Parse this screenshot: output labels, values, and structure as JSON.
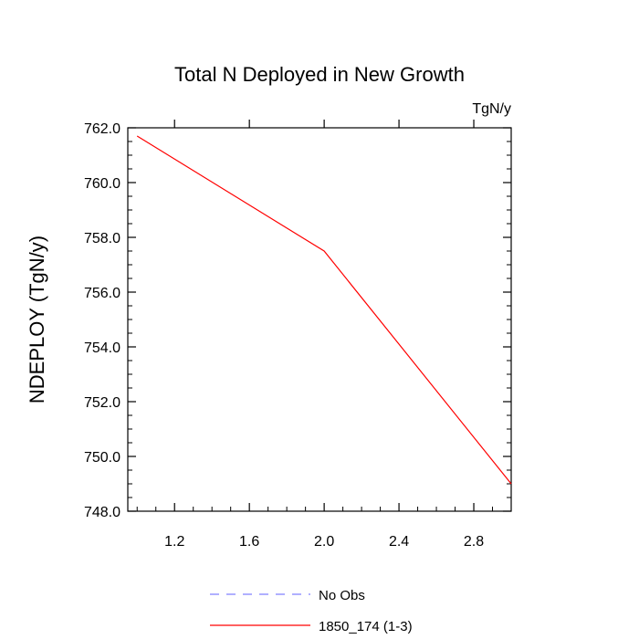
{
  "chart_data": {
    "type": "line",
    "title": "Total N Deployed in New Growth",
    "units_label": "TgN/y",
    "xlabel": "",
    "ylabel": "NDEPLOY  (TgN/y)",
    "xlim": [
      0.95,
      3.0
    ],
    "ylim": [
      748.0,
      762.0
    ],
    "x_ticks": [
      1.2,
      1.6,
      2.0,
      2.4,
      2.8
    ],
    "x_tick_labels": [
      "1.2",
      "1.6",
      "2.0",
      "2.4",
      "2.8"
    ],
    "y_ticks": [
      748.0,
      750.0,
      752.0,
      754.0,
      756.0,
      758.0,
      760.0,
      762.0
    ],
    "y_tick_labels": [
      "748.0",
      "750.0",
      "752.0",
      "754.0",
      "756.0",
      "758.0",
      "760.0",
      "762.0"
    ],
    "grid": false,
    "legend_position": "bottom",
    "series": [
      {
        "name": "1850_174 (1-3)",
        "color": "#ff0000",
        "dash": "solid",
        "x": [
          1.0,
          2.0,
          3.0
        ],
        "y": [
          761.7,
          757.5,
          749.0
        ]
      }
    ],
    "legend": [
      {
        "label": "No Obs",
        "color": "#8080ff",
        "dash": "dashed"
      },
      {
        "label": "1850_174 (1-3)",
        "color": "#ff0000",
        "dash": "solid"
      }
    ]
  }
}
